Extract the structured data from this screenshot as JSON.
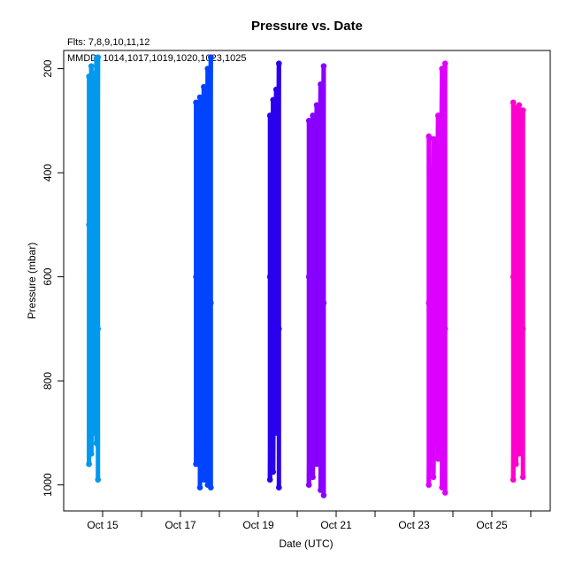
{
  "chart_data": {
    "type": "scatter",
    "title": "Pressure  vs. Date",
    "annotations": [
      "Flts: 7,8,9,10,11,12",
      "MMDD: 1014,1017,1019,1020,1023,1025"
    ],
    "xlabel": "Date (UTC)",
    "ylabel": "Pressure (mbar)",
    "x_unit": "day of October (UTC)",
    "xlim": [
      14.0,
      26.5
    ],
    "ylim": [
      1050,
      165
    ],
    "y_inverted": true,
    "x_ticks": [
      {
        "value": 15,
        "label": "Oct 15"
      },
      {
        "value": 17,
        "label": "Oct 17"
      },
      {
        "value": 19,
        "label": "Oct 19"
      },
      {
        "value": 21,
        "label": "Oct 21"
      },
      {
        "value": 23,
        "label": "Oct 23"
      },
      {
        "value": 25,
        "label": "Oct 25"
      }
    ],
    "x_minor_ticks": [
      16,
      18,
      20,
      22,
      24,
      26
    ],
    "y_ticks": [
      200,
      400,
      600,
      800,
      1000
    ],
    "grid": false,
    "legend": "none",
    "series": [
      {
        "color": "#0099ee",
        "points": [
          {
            "x": 14.65,
            "y": 215
          },
          {
            "x": 14.65,
            "y": 500
          },
          {
            "x": 14.65,
            "y": 960
          },
          {
            "x": 14.71,
            "y": 195
          },
          {
            "x": 14.71,
            "y": 600
          },
          {
            "x": 14.71,
            "y": 940
          },
          {
            "x": 14.77,
            "y": 210
          },
          {
            "x": 14.77,
            "y": 700
          },
          {
            "x": 14.77,
            "y": 900
          },
          {
            "x": 14.84,
            "y": 180
          },
          {
            "x": 14.84,
            "y": 520
          },
          {
            "x": 14.84,
            "y": 920
          },
          {
            "x": 14.88,
            "y": 178
          },
          {
            "x": 14.88,
            "y": 700
          },
          {
            "x": 14.88,
            "y": 990
          }
        ]
      },
      {
        "color": "#0044ff",
        "points": [
          {
            "x": 17.4,
            "y": 265
          },
          {
            "x": 17.4,
            "y": 600
          },
          {
            "x": 17.4,
            "y": 960
          },
          {
            "x": 17.5,
            "y": 255
          },
          {
            "x": 17.5,
            "y": 700
          },
          {
            "x": 17.5,
            "y": 1005
          },
          {
            "x": 17.6,
            "y": 235
          },
          {
            "x": 17.6,
            "y": 550
          },
          {
            "x": 17.6,
            "y": 990
          },
          {
            "x": 17.7,
            "y": 200
          },
          {
            "x": 17.7,
            "y": 800
          },
          {
            "x": 17.7,
            "y": 1000
          },
          {
            "x": 17.78,
            "y": 178
          },
          {
            "x": 17.78,
            "y": 650
          },
          {
            "x": 17.78,
            "y": 1005
          }
        ]
      },
      {
        "color": "#2a00ee",
        "points": [
          {
            "x": 19.3,
            "y": 290
          },
          {
            "x": 19.3,
            "y": 600
          },
          {
            "x": 19.3,
            "y": 990
          },
          {
            "x": 19.38,
            "y": 260
          },
          {
            "x": 19.38,
            "y": 750
          },
          {
            "x": 19.38,
            "y": 975
          },
          {
            "x": 19.46,
            "y": 240
          },
          {
            "x": 19.46,
            "y": 500
          },
          {
            "x": 19.46,
            "y": 900
          },
          {
            "x": 19.53,
            "y": 190
          },
          {
            "x": 19.53,
            "y": 700
          },
          {
            "x": 19.53,
            "y": 1005
          }
        ]
      },
      {
        "color": "#8800ff",
        "points": [
          {
            "x": 20.3,
            "y": 300
          },
          {
            "x": 20.3,
            "y": 600
          },
          {
            "x": 20.3,
            "y": 1000
          },
          {
            "x": 20.4,
            "y": 290
          },
          {
            "x": 20.4,
            "y": 750
          },
          {
            "x": 20.4,
            "y": 985
          },
          {
            "x": 20.5,
            "y": 270
          },
          {
            "x": 20.5,
            "y": 500
          },
          {
            "x": 20.5,
            "y": 960
          },
          {
            "x": 20.6,
            "y": 230
          },
          {
            "x": 20.6,
            "y": 850
          },
          {
            "x": 20.6,
            "y": 1010
          },
          {
            "x": 20.68,
            "y": 195
          },
          {
            "x": 20.68,
            "y": 650
          },
          {
            "x": 20.68,
            "y": 1020
          }
        ]
      },
      {
        "color": "#dd00ff",
        "points": [
          {
            "x": 23.38,
            "y": 330
          },
          {
            "x": 23.38,
            "y": 650
          },
          {
            "x": 23.38,
            "y": 1000
          },
          {
            "x": 23.5,
            "y": 335
          },
          {
            "x": 23.5,
            "y": 750
          },
          {
            "x": 23.5,
            "y": 985
          },
          {
            "x": 23.62,
            "y": 290
          },
          {
            "x": 23.62,
            "y": 550
          },
          {
            "x": 23.62,
            "y": 950
          },
          {
            "x": 23.72,
            "y": 200
          },
          {
            "x": 23.72,
            "y": 800
          },
          {
            "x": 23.72,
            "y": 1005
          },
          {
            "x": 23.8,
            "y": 190
          },
          {
            "x": 23.8,
            "y": 700
          },
          {
            "x": 23.8,
            "y": 1015
          }
        ]
      },
      {
        "color": "#ff00cc",
        "points": [
          {
            "x": 25.55,
            "y": 265
          },
          {
            "x": 25.55,
            "y": 600
          },
          {
            "x": 25.55,
            "y": 990
          },
          {
            "x": 25.62,
            "y": 275
          },
          {
            "x": 25.62,
            "y": 750
          },
          {
            "x": 25.62,
            "y": 960
          },
          {
            "x": 25.7,
            "y": 270
          },
          {
            "x": 25.7,
            "y": 500
          },
          {
            "x": 25.7,
            "y": 940
          },
          {
            "x": 25.8,
            "y": 280
          },
          {
            "x": 25.8,
            "y": 700
          },
          {
            "x": 25.8,
            "y": 985
          }
        ]
      }
    ]
  }
}
